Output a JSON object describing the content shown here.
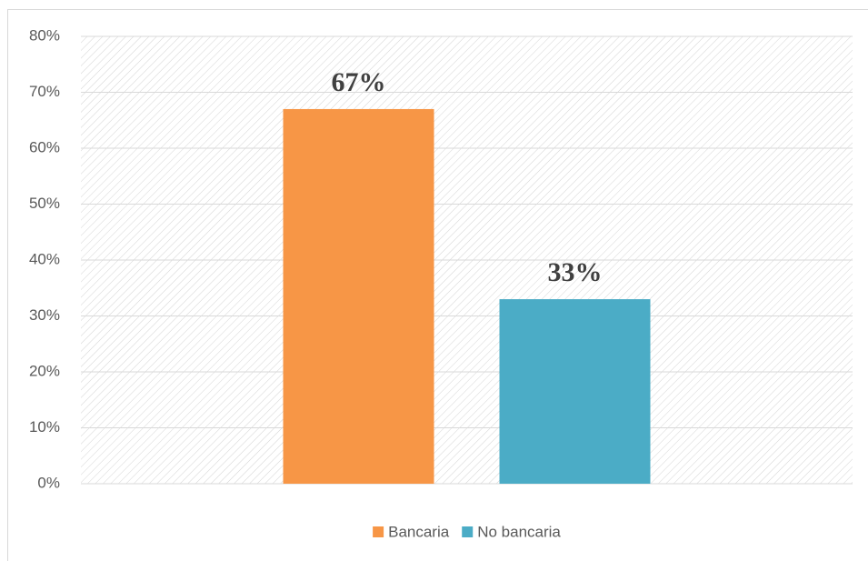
{
  "chart_data": {
    "type": "bar",
    "categories": [
      null
    ],
    "series": [
      {
        "name": "Bancaria",
        "color": "#f79646",
        "values": [
          67
        ],
        "value_labels": [
          "67%"
        ]
      },
      {
        "name": "No bancaria",
        "color": "#4bacc6",
        "values": [
          33
        ],
        "value_labels": [
          "33%"
        ]
      }
    ],
    "ylim": [
      0,
      80
    ],
    "yticks": [
      {
        "value": 0,
        "label": "0%"
      },
      {
        "value": 10,
        "label": "10%"
      },
      {
        "value": 20,
        "label": "20%"
      },
      {
        "value": 30,
        "label": "30%"
      },
      {
        "value": 40,
        "label": "40%"
      },
      {
        "value": 50,
        "label": "50%"
      },
      {
        "value": 60,
        "label": "60%"
      },
      {
        "value": 70,
        "label": "70%"
      },
      {
        "value": 80,
        "label": "80%"
      }
    ],
    "grid": true,
    "legend": "bottom"
  }
}
